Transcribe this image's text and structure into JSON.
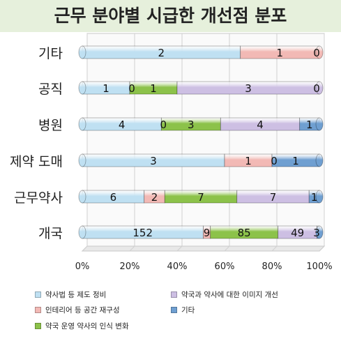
{
  "title": "근무 분야별 시급한 개선점 분포",
  "chart_data": {
    "type": "bar",
    "orientation": "horizontal",
    "stacked": "percent",
    "title": "근무 분야별 시급한 개선점 분포",
    "categories": [
      "기타",
      "공직",
      "병원",
      "제약 도매",
      "근무약사",
      "개국"
    ],
    "series": [
      {
        "name": "약사법 등 제도 정비",
        "color": "#bfe0f2",
        "values": [
          2,
          1,
          4,
          3,
          6,
          152
        ]
      },
      {
        "name": "인테리어 등 공간 재구성",
        "color": "#f2b9b5",
        "values": [
          1,
          0,
          0,
          1,
          2,
          9
        ]
      },
      {
        "name": "약국 운영 약사의 인식 변화",
        "color": "#8cc24a",
        "values": [
          0,
          1,
          3,
          0,
          7,
          85
        ]
      },
      {
        "name": "약국과 약사에 대한 이미지 개선",
        "color": "#cdbfe3",
        "values": [
          0,
          3,
          4,
          0,
          7,
          49
        ]
      },
      {
        "name": "기타",
        "color": "#6f9fd1",
        "values": [
          0,
          0,
          1,
          1,
          1,
          3
        ]
      }
    ],
    "data_labels": [
      [
        "2",
        "1",
        "",
        "",
        "0"
      ],
      [
        "1",
        "0",
        "1",
        "3",
        "0"
      ],
      [
        "4",
        "0",
        "3",
        "4",
        "1"
      ],
      [
        "3",
        "1",
        "",
        "0",
        "1"
      ],
      [
        "6",
        "2",
        "7",
        "7",
        "1"
      ],
      [
        "152",
        "9",
        "85",
        "49",
        "3"
      ]
    ],
    "x_ticks": [
      "0%",
      "20%",
      "40%",
      "60%",
      "80%",
      "100%"
    ],
    "xlim": [
      0,
      100
    ],
    "grid": true,
    "legend_position": "bottom"
  }
}
